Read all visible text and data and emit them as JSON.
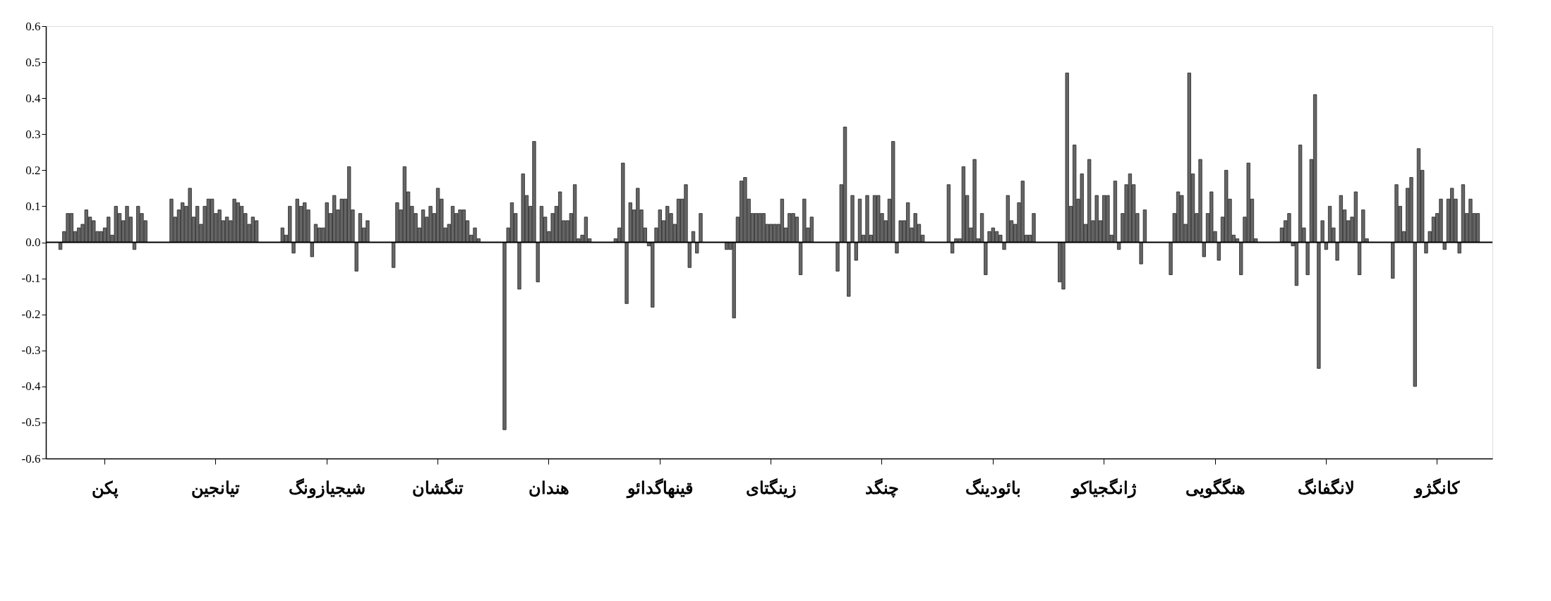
{
  "chart_data": {
    "type": "bar",
    "categories": [
      null,
      null,
      null,
      null,
      null,
      null,
      null,
      null,
      null,
      null,
      null,
      null,
      null,
      null,
      null,
      "پکن",
      null,
      null,
      null,
      null,
      null,
      null,
      null,
      null,
      null,
      null,
      null,
      null,
      null,
      null,
      null,
      null,
      null,
      null,
      null,
      null,
      null,
      null,
      null,
      null,
      null,
      null,
      null,
      null,
      null,
      "تیانجین",
      null,
      null,
      null,
      null,
      null,
      null,
      null,
      null,
      null,
      null,
      null,
      null,
      null,
      null,
      null,
      null,
      null,
      null,
      null,
      null,
      null,
      null,
      null,
      null,
      null,
      null,
      null,
      null,
      null,
      "شیجیازونگ",
      null,
      null,
      null,
      null,
      null,
      null,
      null,
      null,
      null,
      null,
      null,
      null,
      null,
      null,
      null,
      null,
      null,
      null,
      null,
      null,
      null,
      null,
      null,
      null,
      null,
      null,
      null,
      null,
      null,
      "تنگشان",
      null,
      null,
      null,
      null,
      null,
      null,
      null,
      null,
      null,
      null,
      null,
      null,
      null,
      null,
      null,
      null,
      null,
      null,
      null,
      null,
      null,
      null,
      null,
      null,
      null,
      null,
      null,
      null,
      null,
      "هندان",
      null,
      null,
      null,
      null,
      null,
      null,
      null,
      null,
      null,
      null,
      null,
      null,
      null,
      null,
      null,
      null,
      null,
      null,
      null,
      null,
      null,
      null,
      null,
      null,
      null,
      null,
      null,
      null,
      null,
      "قینهاگدائو",
      null,
      null,
      null,
      null,
      null,
      null,
      null,
      null,
      null,
      null,
      null,
      null,
      null,
      null,
      null,
      null,
      null,
      null,
      null,
      null,
      null,
      null,
      null,
      null,
      null,
      null,
      null,
      null,
      null,
      "زینگتای",
      null,
      null,
      null,
      null,
      null,
      null,
      null,
      null,
      null,
      null,
      null,
      null,
      null,
      null,
      null,
      null,
      null,
      null,
      null,
      null,
      null,
      null,
      null,
      null,
      null,
      null,
      null,
      null,
      null,
      "چنگد",
      null,
      null,
      null,
      null,
      null,
      null,
      null,
      null,
      null,
      null,
      null,
      null,
      null,
      null,
      null,
      null,
      null,
      null,
      null,
      null,
      null,
      null,
      null,
      null,
      null,
      null,
      null,
      null,
      null,
      "بائودینگ",
      null,
      null,
      null,
      null,
      null,
      null,
      null,
      null,
      null,
      null,
      null,
      null,
      null,
      null,
      null,
      null,
      null,
      null,
      null,
      null,
      null,
      null,
      null,
      null,
      null,
      null,
      null,
      null,
      null,
      "ژانگجیاکو",
      null,
      null,
      null,
      null,
      null,
      null,
      null,
      null,
      null,
      null,
      null,
      null,
      null,
      null,
      null,
      null,
      null,
      null,
      null,
      null,
      null,
      null,
      null,
      null,
      null,
      null,
      null,
      null,
      null,
      "هنگگویی",
      null,
      null,
      null,
      null,
      null,
      null,
      null,
      null,
      null,
      null,
      null,
      null,
      null,
      null,
      null,
      null,
      null,
      null,
      null,
      null,
      null,
      null,
      null,
      null,
      null,
      null,
      null,
      null,
      null,
      "لانگفانگ",
      null,
      null,
      null,
      null,
      null,
      null,
      null,
      null,
      null,
      null,
      null,
      null,
      null,
      null,
      null,
      null,
      null,
      null,
      null,
      null,
      null,
      null,
      null,
      null,
      null,
      null,
      null,
      null,
      null,
      "کانگژو",
      null,
      null,
      null,
      null,
      null,
      null,
      null,
      null,
      null,
      null,
      null,
      null,
      null,
      null
    ],
    "values": [
      null,
      null,
      null,
      -0.02,
      0.03,
      0.08,
      0.08,
      0.03,
      0.04,
      0.05,
      0.09,
      0.07,
      0.06,
      0.03,
      0.03,
      0.04,
      0.07,
      0.02,
      0.1,
      0.08,
      0.06,
      0.1,
      0.07,
      -0.02,
      0.1,
      0.08,
      0.06,
      null,
      null,
      null,
      null,
      null,
      null,
      0.12,
      0.07,
      0.09,
      0.11,
      0.1,
      0.15,
      0.07,
      0.1,
      0.05,
      0.1,
      0.12,
      0.12,
      0.08,
      0.09,
      0.06,
      0.07,
      0.06,
      0.12,
      0.11,
      0.1,
      0.08,
      0.05,
      0.07,
      0.06,
      null,
      null,
      null,
      null,
      null,
      null,
      0.04,
      0.02,
      0.1,
      -0.03,
      0.12,
      0.1,
      0.11,
      0.09,
      -0.04,
      0.05,
      0.04,
      0.04,
      0.11,
      0.08,
      0.13,
      0.09,
      0.12,
      0.12,
      0.21,
      0.09,
      -0.08,
      0.08,
      0.04,
      0.06,
      null,
      null,
      null,
      null,
      null,
      null,
      -0.07,
      0.11,
      0.09,
      0.21,
      0.14,
      0.1,
      0.08,
      0.04,
      0.09,
      0.07,
      0.1,
      0.08,
      0.15,
      0.12,
      0.04,
      0.05,
      0.1,
      0.08,
      0.09,
      0.09,
      0.06,
      0.02,
      0.04,
      0.01,
      null,
      null,
      null,
      null,
      null,
      null,
      -0.52,
      0.04,
      0.11,
      0.08,
      -0.13,
      0.19,
      0.13,
      0.1,
      0.28,
      -0.11,
      0.1,
      0.07,
      0.03,
      0.08,
      0.1,
      0.14,
      0.06,
      0.06,
      0.08,
      0.16,
      0.01,
      0.02,
      0.07,
      0.01,
      null,
      null,
      null,
      null,
      null,
      null,
      0.01,
      0.04,
      0.22,
      -0.17,
      0.11,
      0.09,
      0.15,
      0.09,
      0.04,
      -0.01,
      -0.18,
      0.04,
      0.09,
      0.06,
      0.1,
      0.08,
      0.05,
      0.12,
      0.12,
      0.16,
      -0.07,
      0.03,
      -0.03,
      0.08,
      null,
      null,
      null,
      null,
      null,
      null,
      -0.02,
      -0.02,
      -0.21,
      0.07,
      0.17,
      0.18,
      0.12,
      0.08,
      0.08,
      0.08,
      0.08,
      0.05,
      0.05,
      0.05,
      0.05,
      0.12,
      0.04,
      0.08,
      0.08,
      0.07,
      -0.09,
      0.12,
      0.04,
      0.07,
      null,
      null,
      null,
      null,
      null,
      null,
      -0.08,
      0.16,
      0.32,
      -0.15,
      0.13,
      -0.05,
      0.12,
      0.02,
      0.13,
      0.02,
      0.13,
      0.13,
      0.08,
      0.06,
      0.12,
      0.28,
      -0.03,
      0.06,
      0.06,
      0.11,
      0.04,
      0.08,
      0.05,
      0.02,
      null,
      null,
      null,
      null,
      null,
      null,
      0.16,
      -0.03,
      0.01,
      0.01,
      0.21,
      0.13,
      0.04,
      0.23,
      0.01,
      0.08,
      -0.09,
      0.03,
      0.04,
      0.03,
      0.02,
      -0.02,
      0.13,
      0.06,
      0.05,
      0.11,
      0.17,
      0.02,
      0.02,
      0.08,
      null,
      null,
      null,
      null,
      null,
      null,
      -0.11,
      -0.13,
      0.47,
      0.1,
      0.27,
      0.12,
      0.19,
      0.05,
      0.23,
      0.06,
      0.13,
      0.06,
      0.13,
      0.13,
      0.02,
      0.17,
      -0.02,
      0.08,
      0.16,
      0.19,
      0.16,
      0.08,
      -0.06,
      0.09,
      null,
      null,
      null,
      null,
      null,
      null,
      -0.09,
      0.08,
      0.14,
      0.13,
      0.05,
      0.47,
      0.19,
      0.08,
      0.23,
      -0.04,
      0.08,
      0.14,
      0.03,
      -0.05,
      0.07,
      0.2,
      0.12,
      0.02,
      0.01,
      -0.09,
      0.07,
      0.22,
      0.12,
      0.01,
      null,
      null,
      null,
      null,
      null,
      null,
      0.04,
      0.06,
      0.08,
      -0.01,
      -0.12,
      0.27,
      0.04,
      -0.09,
      0.23,
      0.41,
      -0.35,
      0.06,
      -0.02,
      0.1,
      0.04,
      -0.05,
      0.13,
      0.09,
      0.06,
      0.07,
      0.14,
      -0.09,
      0.09,
      0.01,
      null,
      null,
      null,
      null,
      null,
      null,
      -0.1,
      0.16,
      0.1,
      0.03,
      0.15,
      0.18,
      -0.4,
      0.26,
      0.2,
      -0.03,
      0.03,
      0.07,
      0.08,
      0.12,
      -0.02,
      0.12,
      0.15,
      0.12,
      -0.03,
      0.16,
      0.08,
      0.12,
      0.08,
      0.08,
      null,
      null,
      null
    ],
    "color": "#666666",
    "ylim": [
      -0.6,
      0.6
    ],
    "yticks": [
      -0.6,
      -0.5,
      -0.4,
      -0.3,
      -0.2,
      -0.1,
      {
        "value": 0,
        "label": "0.0"
      },
      0.1,
      0.2,
      0.3,
      0.4,
      0.5,
      0.6
    ],
    "ref_lines": [
      {
        "axis": "y",
        "value": 0,
        "color": "#000000"
      }
    ],
    "grid": false
  }
}
